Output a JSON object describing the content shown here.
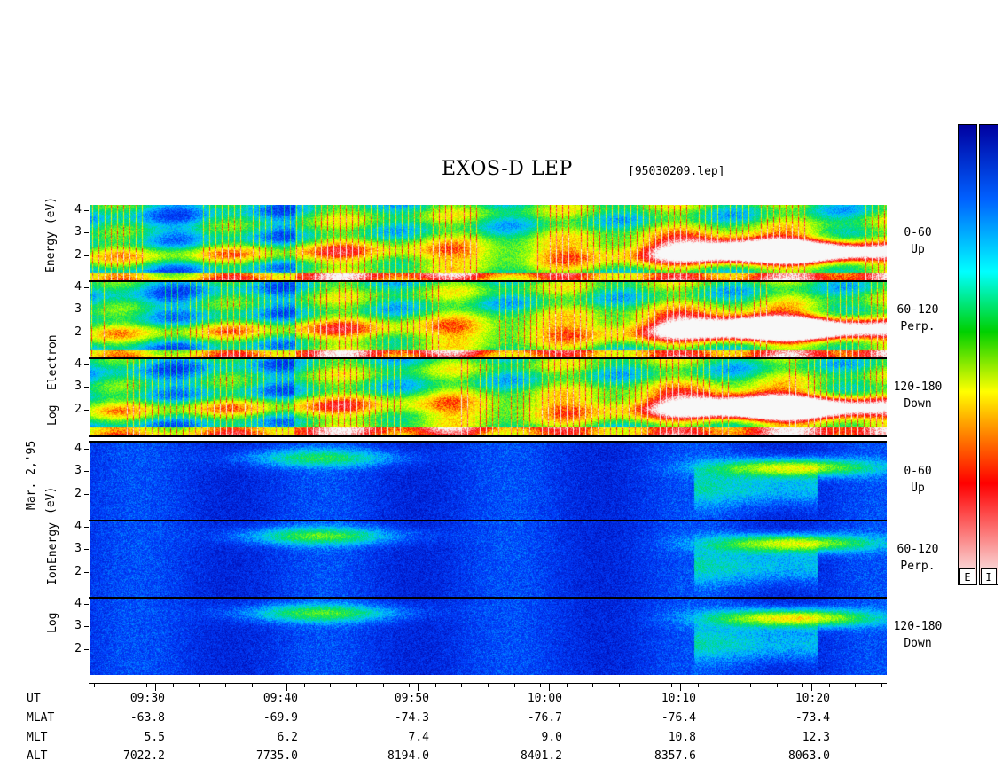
{
  "header": {
    "title": "EXOS-D LEP",
    "file": "[95030209.lep]"
  },
  "left_labels": {
    "date": "Mar. 2,'95",
    "electron_log": "Log",
    "electron_species": "Electron",
    "electron_energy": "Energy",
    "electron_unit": "(eV)",
    "ion_log": "Log",
    "ion_species": "Ion",
    "ion_energy": "Energy",
    "ion_unit": "(eV)"
  },
  "y_ticks": [
    "4",
    "3",
    "2"
  ],
  "panels": [
    {
      "species": "electron",
      "angle": "0-60",
      "dir": "Up"
    },
    {
      "species": "electron",
      "angle": "60-120",
      "dir": "Perp."
    },
    {
      "species": "electron",
      "angle": "120-180",
      "dir": "Down"
    },
    {
      "species": "ion",
      "angle": "0-60",
      "dir": "Up"
    },
    {
      "species": "ion",
      "angle": "60-120",
      "dir": "Perp."
    },
    {
      "species": "ion",
      "angle": "120-180",
      "dir": "Down"
    }
  ],
  "colorbar": {
    "labels": [
      "E",
      "I"
    ]
  },
  "axis_rows": {
    "labels": [
      "UT",
      "MLAT",
      "MLT",
      "ALT"
    ],
    "columns": [
      {
        "UT": "09:30",
        "MLAT": "-63.8",
        "MLT": "5.5",
        "ALT": "7022.2"
      },
      {
        "UT": "09:40",
        "MLAT": "-69.9",
        "MLT": "6.2",
        "ALT": "7735.0"
      },
      {
        "UT": "09:50",
        "MLAT": "-74.3",
        "MLT": "7.4",
        "ALT": "8194.0"
      },
      {
        "UT": "10:00",
        "MLAT": "-76.7",
        "MLT": "9.0",
        "ALT": "8401.2"
      },
      {
        "UT": "10:10",
        "MLAT": "-76.4",
        "MLT": "10.8",
        "ALT": "8357.6"
      },
      {
        "UT": "10:20",
        "MLAT": "-73.4",
        "MLT": "12.3",
        "ALT": "8063.0"
      }
    ]
  },
  "chart_data": {
    "type": "heatmap",
    "x_time_range": [
      "09:26",
      "10:25"
    ],
    "y_range_log_eV": [
      1,
      4.2
    ],
    "x": [
      "09:30",
      "09:40",
      "09:50",
      "10:00",
      "10:10",
      "10:20"
    ],
    "colormap": [
      "#f8f8f8",
      "#ff0000",
      "#ffa000",
      "#ffff00",
      "#00d000",
      "#00ffff",
      "#0060ff",
      "#0000a0"
    ],
    "series": [
      {
        "name": "Electron 0-60 Up",
        "features": [
          {
            "t": "10:14",
            "logE": 2.5,
            "level": 0.9
          },
          {
            "t": "10:18",
            "logE": 2.2,
            "level": 1.0
          }
        ]
      },
      {
        "name": "Electron 60-120 Perp.",
        "features": [
          {
            "t": "10:14",
            "logE": 2.5,
            "level": 0.9
          },
          {
            "t": "10:18",
            "logE": 2.2,
            "level": 1.0
          }
        ]
      },
      {
        "name": "Electron 120-180 Down",
        "features": [
          {
            "t": "10:14",
            "logE": 2.5,
            "level": 0.9
          },
          {
            "t": "10:18",
            "logE": 2.0,
            "level": 1.0
          }
        ]
      },
      {
        "name": "Ion 0-60 Up",
        "features": [
          {
            "t": "09:43",
            "logE": 3.6,
            "level": 0.5
          },
          {
            "t": "10:18",
            "logE": 3.2,
            "level": 0.9
          }
        ]
      },
      {
        "name": "Ion 60-120 Perp.",
        "features": [
          {
            "t": "09:43",
            "logE": 3.6,
            "level": 0.6
          },
          {
            "t": "10:18",
            "logE": 3.3,
            "level": 0.9
          }
        ]
      },
      {
        "name": "Ion 120-180 Down",
        "features": [
          {
            "t": "09:43",
            "logE": 3.6,
            "level": 0.6
          },
          {
            "t": "10:18",
            "logE": 3.4,
            "level": 1.0
          }
        ]
      }
    ]
  }
}
